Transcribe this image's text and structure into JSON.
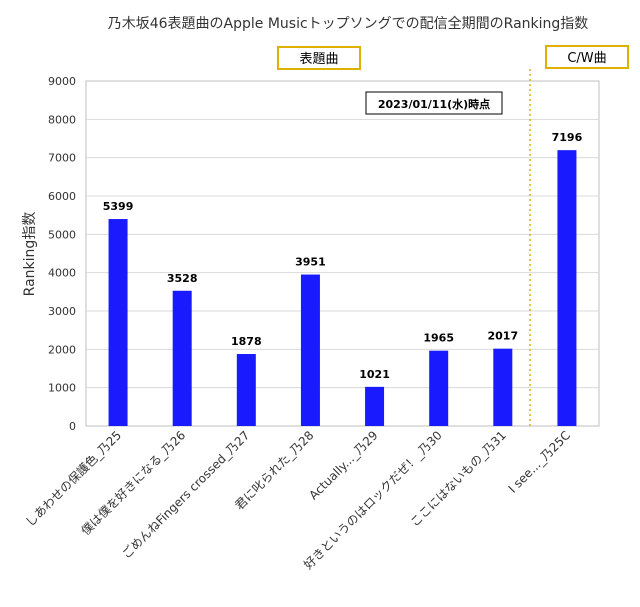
{
  "chart_data": {
    "type": "bar",
    "title": "乃木坂46表題曲のApple Musicトップソングでの配信全期間のRanking指数",
    "xlabel": "",
    "ylabel": "Ranking指数",
    "ylim": [
      0,
      9000
    ],
    "yticks": [
      0,
      1000,
      2000,
      3000,
      4000,
      5000,
      6000,
      7000,
      8000,
      9000
    ],
    "grid": true,
    "bar_color": "#1a1aff",
    "categories": [
      "しあわせの保護色_乃25",
      "僕は僕を好きになる_乃26",
      "ごめんねFingers crossed_乃27",
      "君に叱られた_乃28",
      "Actually..._乃29",
      "好きというのはロックだぜ！_乃30",
      "ここにはないもの_乃31",
      "I see..._乃25C"
    ],
    "values": [
      5399,
      3528,
      1878,
      3951,
      1021,
      1965,
      2017,
      7196
    ],
    "data_labels": [
      "5399",
      "3528",
      "1878",
      "3951",
      "1021",
      "1965",
      "2017",
      "7196"
    ],
    "annotations": {
      "date_note": "2023/01/11(水)時点",
      "group_left_label": "表題曲",
      "group_right_label": "C/W曲",
      "divider_color": "#e0b000",
      "label_border_color": "#e0b000"
    }
  }
}
